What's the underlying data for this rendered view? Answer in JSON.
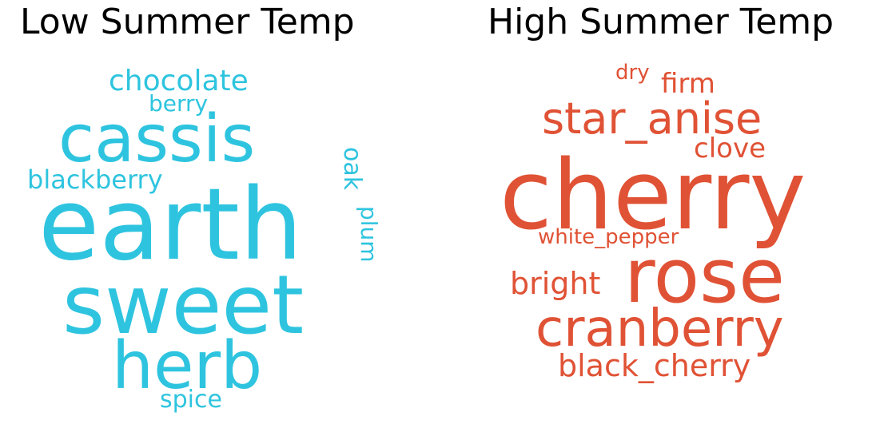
{
  "left_panel": {
    "title": "Low Summer Temp",
    "color": "#2ec4df",
    "words": {
      "chocolate": "chocolate",
      "berry": "berry",
      "cassis": "cassis",
      "oak": "oak",
      "blackberry": "blackberry",
      "earth": "earth",
      "plum": "plum",
      "sweet": "sweet",
      "herb": "herb",
      "spice": "spice"
    }
  },
  "right_panel": {
    "title": "High Summer Temp",
    "color": "#e05235",
    "words": {
      "dry": "dry",
      "firm": "firm",
      "star_anise": "star_anise",
      "clove": "clove",
      "cherry": "cherry",
      "white_pepper": "white_pepper",
      "rose": "rose",
      "bright": "bright",
      "cranberry": "cranberry",
      "black_cherry": "black_cherry"
    }
  }
}
